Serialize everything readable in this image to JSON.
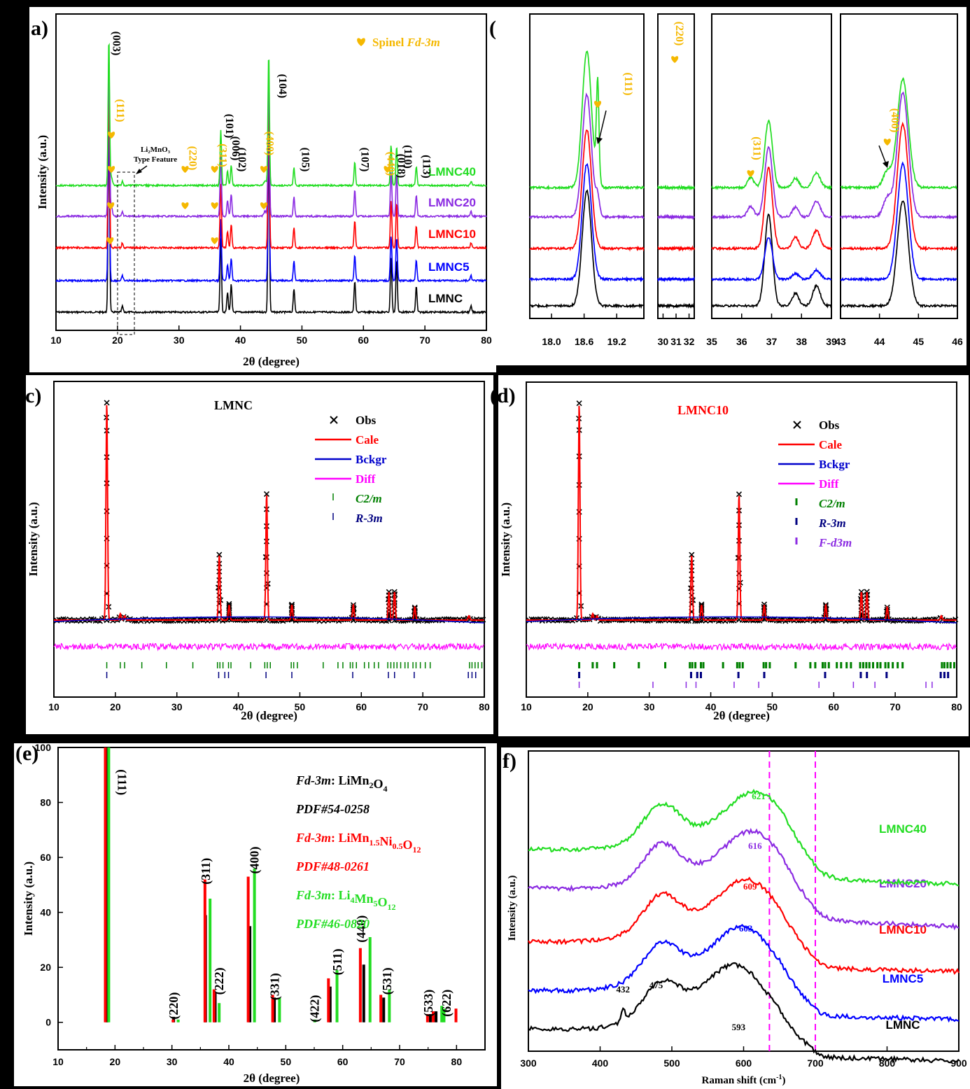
{
  "chart_data": [
    {
      "panel": "a)",
      "type": "line",
      "xlabel": "2θ (degree)",
      "ylabel": "Intensity (a.u.)",
      "xlim": [
        10,
        80
      ],
      "xticks": [
        10,
        20,
        30,
        40,
        50,
        60,
        70,
        80
      ],
      "legend_text": "Spinel",
      "legend_italic": "Fd-3m",
      "feature_text": [
        "Li₂MnO₃",
        "Type Feature"
      ],
      "series": [
        {
          "name": "LMNC",
          "color": "#000000"
        },
        {
          "name": "LMNC5",
          "color": "#0000ff"
        },
        {
          "name": "LMNC10",
          "color": "#ff0000"
        },
        {
          "name": "LMNC20",
          "color": "#8b2be2"
        },
        {
          "name": "LMNC40",
          "color": "#22dd22"
        }
      ],
      "layered_peaks": [
        {
          "x": 18.6,
          "h": 1.0
        },
        {
          "x": 20.8,
          "h": 0.03
        },
        {
          "x": 36.8,
          "h": 0.38
        },
        {
          "x": 37.9,
          "h": 0.1
        },
        {
          "x": 38.5,
          "h": 0.14
        },
        {
          "x": 44.6,
          "h": 0.9
        },
        {
          "x": 48.7,
          "h": 0.12
        },
        {
          "x": 58.6,
          "h": 0.16
        },
        {
          "x": 64.5,
          "h": 0.28
        },
        {
          "x": 65.4,
          "h": 0.27
        },
        {
          "x": 68.6,
          "h": 0.13
        },
        {
          "x": 77.5,
          "h": 0.03
        }
      ],
      "peak_labels": [
        {
          "text": "(003)",
          "x": 18.6,
          "color": "#000000"
        },
        {
          "text": "(111)",
          "x": 19.2,
          "color": "#f5b800"
        },
        {
          "text": "(220)",
          "x": 31.0,
          "color": "#f5b800"
        },
        {
          "text": "(311)",
          "x": 35.9,
          "color": "#f5b800"
        },
        {
          "text": "(101)",
          "x": 37.0,
          "color": "#000000"
        },
        {
          "text": "(006)",
          "x": 38.0,
          "color": "#000000"
        },
        {
          "text": "(102)",
          "x": 39.0,
          "color": "#000000"
        },
        {
          "text": "(400)",
          "x": 43.5,
          "color": "#f5b800"
        },
        {
          "text": "(104)",
          "x": 45.6,
          "color": "#000000"
        },
        {
          "text": "(105)",
          "x": 49.3,
          "color": "#000000"
        },
        {
          "text": "(107)",
          "x": 59.0,
          "color": "#000000"
        },
        {
          "text": "(440)",
          "x": 63.2,
          "color": "#f5b800"
        },
        {
          "text": "(018)",
          "x": 64.9,
          "color": "#000000"
        },
        {
          "text": "(110)",
          "x": 66.0,
          "color": "#000000"
        },
        {
          "text": "(113)",
          "x": 69.0,
          "color": "#000000"
        }
      ],
      "spinel_markers": {
        "LMNC10": [
          18.8,
          35.8
        ],
        "LMNC20": [
          18.9,
          31.0,
          35.8,
          43.8
        ],
        "LMNC40": [
          19.0,
          31.0,
          35.8,
          43.8,
          63.9
        ]
      }
    },
    {
      "panel": "b)",
      "type": "line",
      "subpanels": [
        {
          "xlim": [
            17.6,
            19.7
          ],
          "xticks": [
            "18.0",
            "18.6",
            "19.2"
          ],
          "peaks": [
            {
              "x": 18.65,
              "w": 0.12,
              "h": 1.0
            }
          ],
          "spinel_x": 18.85,
          "label": "(111)"
        },
        {
          "xlim": [
            29.6,
            32.4
          ],
          "xticks": [
            "30",
            "31",
            "32"
          ],
          "peaks": [],
          "spinel_x": 30.9,
          "label": "(220)"
        },
        {
          "xlim": [
            35.0,
            39.0
          ],
          "xticks": [
            "35",
            "36",
            "37",
            "38",
            "39"
          ],
          "peaks": [
            {
              "x": 36.9,
              "w": 0.18,
              "h": 1.0
            },
            {
              "x": 37.8,
              "w": 0.15,
              "h": 0.14
            },
            {
              "x": 38.5,
              "w": 0.18,
              "h": 0.22
            }
          ],
          "spinel_x": 36.3,
          "label": "(311)"
        },
        {
          "xlim": [
            43.0,
            46.0
          ],
          "xticks": [
            "43",
            "44",
            "45",
            "46"
          ],
          "peaks": [
            {
              "x": 44.6,
              "w": 0.2,
              "h": 1.0
            }
          ],
          "spinel_x": 44.2,
          "label": "(400)"
        }
      ],
      "series": [
        "LMNC",
        "LMNC5",
        "LMNC10",
        "LMNC20",
        "LMNC40"
      ]
    },
    {
      "panel": "c)",
      "type": "line",
      "title": "LMNC",
      "title_color": "#000000",
      "xlabel": "2θ (degree)",
      "ylabel": "Intensity (a.u.)",
      "xlim": [
        10,
        80
      ],
      "xticks": [
        10,
        20,
        30,
        40,
        50,
        60,
        70,
        80
      ],
      "legend": [
        {
          "label": "Obs",
          "color": "#000000",
          "kind": "x"
        },
        {
          "label": "Cale",
          "color": "#ff0000",
          "kind": "line"
        },
        {
          "label": "Bckgr",
          "color": "#0000cc",
          "kind": "line"
        },
        {
          "label": "Diff",
          "color": "#ff00ff",
          "kind": "line"
        },
        {
          "label": "C2/m",
          "color": "#008000",
          "kind": "tick",
          "italic": true
        },
        {
          "label": "R-3m",
          "color": "#000080",
          "kind": "tick",
          "italic": true
        }
      ]
    },
    {
      "panel": "d)",
      "type": "line",
      "title": "LMNC10",
      "title_color": "#ff0000",
      "xlabel": "2θ (degree)",
      "ylabel": "Intensity (a.u.)",
      "xlim": [
        10,
        80
      ],
      "xticks": [
        10,
        20,
        30,
        40,
        50,
        60,
        70,
        80
      ],
      "legend": [
        {
          "label": "Obs",
          "color": "#000000",
          "kind": "x"
        },
        {
          "label": "Cale",
          "color": "#ff0000",
          "kind": "line"
        },
        {
          "label": "Bckgr",
          "color": "#0000cc",
          "kind": "line"
        },
        {
          "label": "Diff",
          "color": "#ff00ff",
          "kind": "line"
        },
        {
          "label": "C2/m",
          "color": "#008000",
          "kind": "tick",
          "italic": true
        },
        {
          "label": "R-3m",
          "color": "#000080",
          "kind": "tick",
          "italic": true
        },
        {
          "label": "F-d3m",
          "color": "#8b2be2",
          "kind": "tick",
          "italic": true
        }
      ]
    },
    {
      "panel": "(e)",
      "type": "bar",
      "xlabel": "2θ (degree)",
      "ylabel": "Intensity (a.u.)",
      "xlim": [
        10,
        85
      ],
      "ylim": [
        -10,
        100
      ],
      "xticks": [
        10,
        20,
        30,
        40,
        50,
        60,
        70,
        80
      ],
      "yticks": [
        0,
        20,
        40,
        60,
        80,
        100
      ],
      "legend": [
        {
          "italic": "Fd-3m",
          "text": ": LiMn",
          "sub1": "2",
          "text2": "O",
          "sub2": "4",
          "color": "#000000"
        },
        {
          "italic": "PDF#54-0258",
          "color": "#000000"
        },
        {
          "italic": "Fd-3m",
          "text": ": LiMn",
          "sub1": "1.5",
          "text2": "Ni",
          "sub2": "0.5",
          "text3": "O",
          "sub3": "12",
          "color": "#ff0000"
        },
        {
          "italic": "PDF#48-0261",
          "color": "#ff0000"
        },
        {
          "italic": "Fd-3m",
          "text": ": Li",
          "sub1": "4",
          "text2": "Mn",
          "sub2": "5",
          "text3": "O",
          "sub3": "12",
          "color": "#22dd22"
        },
        {
          "italic": "PDF#46-0820",
          "color": "#22dd22"
        }
      ],
      "series": [
        {
          "name": "PDF#54-0258",
          "color": "#000000",
          "x": [
            18.6,
            30.3,
            35.9,
            37.6,
            43.7,
            48.0,
            57.8,
            63.7,
            67.2,
            75.4,
            76.4
          ],
          "values": [
            100,
            2,
            39,
            11,
            35,
            9,
            13,
            21,
            9,
            3,
            4
          ]
        },
        {
          "name": "PDF#48-0261",
          "color": "#ff0000",
          "x": [
            18.3,
            30.2,
            35.8,
            37.4,
            43.4,
            47.7,
            57.5,
            63.1,
            66.7,
            74.9,
            75.9,
            79.9
          ],
          "values": [
            100,
            1,
            52,
            12,
            53,
            10,
            16,
            27,
            10,
            3,
            4,
            5
          ]
        },
        {
          "name": "PDF#46-0820",
          "color": "#22dd22",
          "x": [
            18.9,
            31.1,
            36.7,
            38.3,
            44.5,
            48.9,
            55.1,
            59.0,
            64.8,
            68.2,
            77.4,
            77.8
          ],
          "values": [
            100,
            1,
            45,
            7,
            56,
            9,
            1,
            19,
            31,
            12,
            6,
            5
          ]
        }
      ],
      "peak_labels": [
        {
          "text": "(111)",
          "x": 20.5,
          "y": 96
        },
        {
          "text": "(220)",
          "x": 31.0,
          "y": 6
        },
        {
          "text": "(311)",
          "x": 36.7,
          "y": 55
        },
        {
          "text": "(222)",
          "x": 39.0,
          "y": 15
        },
        {
          "text": "(400)",
          "x": 45.2,
          "y": 59
        },
        {
          "text": "(331)",
          "x": 48.8,
          "y": 13
        },
        {
          "text": "(422)",
          "x": 55.8,
          "y": 5
        },
        {
          "text": "(511)",
          "x": 59.8,
          "y": 22
        },
        {
          "text": "(440)",
          "x": 64.0,
          "y": 34
        },
        {
          "text": "(531)",
          "x": 68.5,
          "y": 15
        },
        {
          "text": "(533)",
          "x": 75.8,
          "y": 7
        },
        {
          "text": "(622)",
          "x": 79.0,
          "y": 7
        }
      ]
    },
    {
      "panel": "f)",
      "type": "line",
      "xlabel": "Raman shift (cm",
      "xlabel_sup": "-1",
      "xlabel_end": ")",
      "ylabel": "Intensity (a.u.)",
      "xlim": [
        300,
        900
      ],
      "xticks": [
        300,
        400,
        500,
        600,
        700,
        800,
        900
      ],
      "dashed_lines_x": [
        636,
        700
      ],
      "series": [
        {
          "name": "LMNC",
          "color": "#000000",
          "peak": 593,
          "labels": [
            {
              "text": "432",
              "x": 432
            },
            {
              "text": "475",
              "x": 478
            },
            {
              "text": "593",
              "x": 593
            }
          ]
        },
        {
          "name": "LMNC5",
          "color": "#0000ff",
          "peak": 603,
          "labels": [
            {
              "text": "603",
              "x": 603
            }
          ]
        },
        {
          "name": "LMNC10",
          "color": "#ff0000",
          "peak": 609,
          "labels": [
            {
              "text": "609",
              "x": 609
            }
          ]
        },
        {
          "name": "LMNC20",
          "color": "#8b2be2",
          "peak": 616,
          "labels": [
            {
              "text": "616",
              "x": 616
            }
          ]
        },
        {
          "name": "LMNC40",
          "color": "#22dd22",
          "peak": 621,
          "labels": [
            {
              "text": "621",
              "x": 621
            }
          ]
        }
      ]
    }
  ]
}
